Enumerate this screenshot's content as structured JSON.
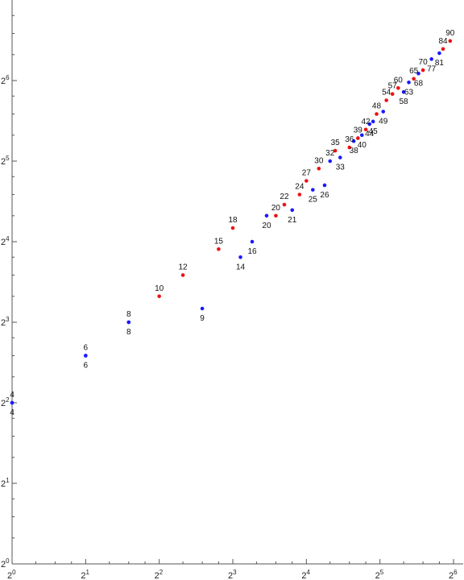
{
  "chart_data": {
    "type": "scatter",
    "title": "",
    "xlabel": "",
    "ylabel": "",
    "x_scale": "log2",
    "y_scale": "log2",
    "xlim": [
      1,
      64
    ],
    "ylim": [
      1,
      128
    ],
    "x_ticks": [
      {
        "base": "2",
        "exp": "0",
        "value": 1
      },
      {
        "base": "2",
        "exp": "1",
        "value": 2
      },
      {
        "base": "2",
        "exp": "2",
        "value": 4
      },
      {
        "base": "2",
        "exp": "3",
        "value": 8
      },
      {
        "base": "2",
        "exp": "4",
        "value": 16
      },
      {
        "base": "2",
        "exp": "5",
        "value": 32
      },
      {
        "base": "2",
        "exp": "6",
        "value": 64
      }
    ],
    "y_ticks": [
      {
        "base": "2",
        "exp": "0",
        "value": 1
      },
      {
        "base": "2",
        "exp": "1",
        "value": 2
      },
      {
        "base": "2",
        "exp": "2",
        "value": 4
      },
      {
        "base": "2",
        "exp": "3",
        "value": 8
      },
      {
        "base": "2",
        "exp": "4",
        "value": 16
      },
      {
        "base": "2",
        "exp": "5",
        "value": 32
      },
      {
        "base": "2",
        "exp": "6",
        "value": 64
      }
    ],
    "grid": false,
    "colors": {
      "blue": "#1a1aff",
      "red": "#ee1111"
    },
    "points": [
      {
        "x": 1.0,
        "y": 4.0,
        "label": "4",
        "color": "blue",
        "label_pos": "above"
      },
      {
        "x": 1.0,
        "y": 4.0,
        "label": "4",
        "color": "blue",
        "label_pos": "below"
      },
      {
        "x": 2.0,
        "y": 6.0,
        "label": "6",
        "color": "blue",
        "label_pos": "above"
      },
      {
        "x": 2.0,
        "y": 6.0,
        "label": "6",
        "color": "blue",
        "label_pos": "below"
      },
      {
        "x": 3.0,
        "y": 8.0,
        "label": "8",
        "color": "blue",
        "label_pos": "above"
      },
      {
        "x": 3.0,
        "y": 8.0,
        "label": "8",
        "color": "blue",
        "label_pos": "below"
      },
      {
        "x": 4.0,
        "y": 10.0,
        "label": "10",
        "color": "red",
        "label_pos": "above"
      },
      {
        "x": 5.0,
        "y": 12.0,
        "label": "12",
        "color": "red",
        "label_pos": "above"
      },
      {
        "x": 6.0,
        "y": 9.0,
        "label": "9",
        "color": "blue",
        "label_pos": "below"
      },
      {
        "x": 7.0,
        "y": 15.0,
        "label": "15",
        "color": "red",
        "label_pos": "above"
      },
      {
        "x": 8.0,
        "y": 18.0,
        "label": "18",
        "color": "red",
        "label_pos": "above"
      },
      {
        "x": 8.6,
        "y": 14.0,
        "label": "14",
        "color": "blue",
        "label_pos": "below"
      },
      {
        "x": 9.6,
        "y": 16.0,
        "label": "16",
        "color": "blue",
        "label_pos": "below"
      },
      {
        "x": 11.0,
        "y": 20.0,
        "label": "20",
        "color": "blue",
        "label_pos": "below"
      },
      {
        "x": 12.0,
        "y": 20.0,
        "label": "20",
        "color": "red",
        "label_pos": "above"
      },
      {
        "x": 13.0,
        "y": 22.0,
        "label": "22",
        "color": "red",
        "label_pos": "above"
      },
      {
        "x": 14.0,
        "y": 21.0,
        "label": "21",
        "color": "blue",
        "label_pos": "below"
      },
      {
        "x": 15.0,
        "y": 24.0,
        "label": "24",
        "color": "red",
        "label_pos": "above"
      },
      {
        "x": 16.0,
        "y": 27.0,
        "label": "27",
        "color": "red",
        "label_pos": "above"
      },
      {
        "x": 17.0,
        "y": 25.0,
        "label": "25",
        "color": "blue",
        "label_pos": "below"
      },
      {
        "x": 18.0,
        "y": 30.0,
        "label": "30",
        "color": "red",
        "label_pos": "above"
      },
      {
        "x": 19.0,
        "y": 26.0,
        "label": "26",
        "color": "blue",
        "label_pos": "below"
      },
      {
        "x": 20.0,
        "y": 32.0,
        "label": "32",
        "color": "blue",
        "label_pos": "above"
      },
      {
        "x": 21.0,
        "y": 35.0,
        "label": "35",
        "color": "red",
        "label_pos": "above"
      },
      {
        "x": 22.0,
        "y": 33.0,
        "label": "33",
        "color": "blue",
        "label_pos": "below"
      },
      {
        "x": 24.0,
        "y": 36.0,
        "label": "36",
        "color": "red",
        "label_pos": "above"
      },
      {
        "x": 25.0,
        "y": 38.0,
        "label": "38",
        "color": "blue",
        "label_pos": "below"
      },
      {
        "x": 26.0,
        "y": 39.0,
        "label": "39",
        "color": "red",
        "label_pos": "above"
      },
      {
        "x": 27.0,
        "y": 40.0,
        "label": "40",
        "color": "blue",
        "label_pos": "below"
      },
      {
        "x": 28.0,
        "y": 42.0,
        "label": "42",
        "color": "red",
        "label_pos": "above"
      },
      {
        "x": 29.0,
        "y": 44.0,
        "label": "44",
        "color": "blue",
        "label_pos": "below"
      },
      {
        "x": 30.0,
        "y": 45.0,
        "label": "45",
        "color": "blue",
        "label_pos": "below"
      },
      {
        "x": 31.0,
        "y": 48.0,
        "label": "48",
        "color": "red",
        "label_pos": "above"
      },
      {
        "x": 33.0,
        "y": 49.0,
        "label": "49",
        "color": "blue",
        "label_pos": "below"
      },
      {
        "x": 34.0,
        "y": 54.0,
        "label": "54",
        "color": "red",
        "label_pos": "above"
      },
      {
        "x": 36.0,
        "y": 57.0,
        "label": "57",
        "color": "red",
        "label_pos": "above"
      },
      {
        "x": 38.0,
        "y": 60.0,
        "label": "60",
        "color": "red",
        "label_pos": "above"
      },
      {
        "x": 40.0,
        "y": 58.0,
        "label": "58",
        "color": "blue",
        "label_pos": "below"
      },
      {
        "x": 42.0,
        "y": 63.0,
        "label": "63",
        "color": "blue",
        "label_pos": "below"
      },
      {
        "x": 44.0,
        "y": 65.0,
        "label": "65",
        "color": "red",
        "label_pos": "above"
      },
      {
        "x": 46.0,
        "y": 68.0,
        "label": "68",
        "color": "blue",
        "label_pos": "below"
      },
      {
        "x": 48.0,
        "y": 70.0,
        "label": "70",
        "color": "red",
        "label_pos": "above"
      },
      {
        "x": 52.0,
        "y": 77.0,
        "label": "77",
        "color": "blue",
        "label_pos": "below"
      },
      {
        "x": 56.0,
        "y": 81.0,
        "label": "81",
        "color": "blue",
        "label_pos": "below"
      },
      {
        "x": 58.0,
        "y": 84.0,
        "label": "84",
        "color": "red",
        "label_pos": "above"
      },
      {
        "x": 62.0,
        "y": 90.0,
        "label": "90",
        "color": "red",
        "label_pos": "above"
      }
    ]
  }
}
